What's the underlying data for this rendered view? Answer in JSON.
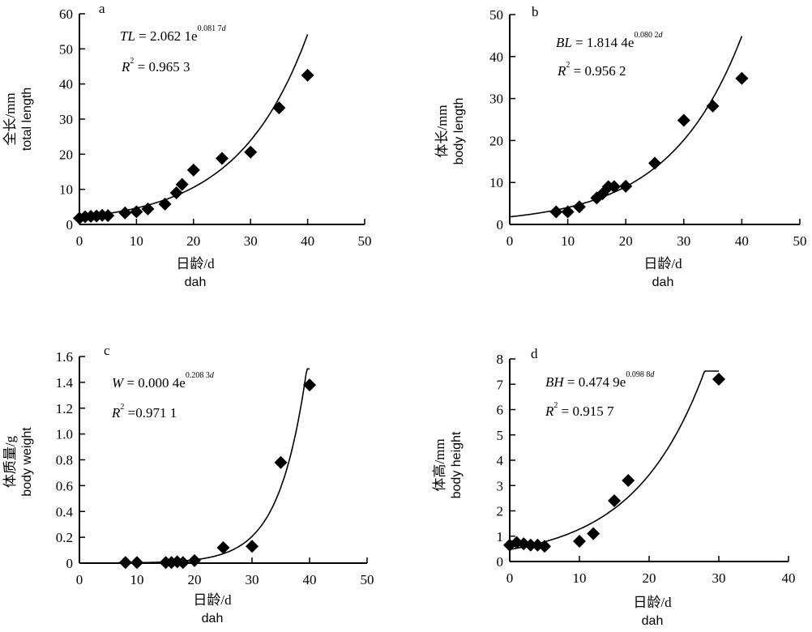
{
  "chart_data": [
    {
      "type": "scatter",
      "panel": "a",
      "ylabel_cn": "全长/mm",
      "ylabel_en": "total length",
      "xlabel_cn": "日龄/d",
      "xlabel_en": "dah",
      "xlim": [
        0,
        50
      ],
      "ylim": [
        0,
        60
      ],
      "xticks": [
        "0",
        "10",
        "20",
        "30",
        "40",
        "50"
      ],
      "yticks": [
        "0",
        "10",
        "20",
        "30",
        "40",
        "50",
        "60"
      ],
      "equation": {
        "var": "TL",
        "text": " = 2.062 1e",
        "exp": "0.081 7",
        "expvar": "d",
        "r2": " = 0.965 3"
      },
      "fit": {
        "a": 2.0621,
        "b": 0.0817,
        "xmax": 40
      },
      "x": [
        0,
        1,
        2,
        3,
        4,
        5,
        8,
        10,
        12,
        15,
        17,
        18,
        20,
        25,
        30,
        35,
        40
      ],
      "y": [
        1.8,
        2.2,
        2.3,
        2.4,
        2.6,
        2.5,
        3.3,
        3.6,
        4.4,
        5.8,
        9.0,
        11.4,
        15.5,
        18.8,
        20.6,
        33.2,
        42.5
      ]
    },
    {
      "type": "scatter",
      "panel": "b",
      "ylabel_cn": "体长/mm",
      "ylabel_en": "body length",
      "xlabel_cn": "日龄/d",
      "xlabel_en": "dah",
      "xlim": [
        0,
        50
      ],
      "ylim": [
        0,
        50
      ],
      "xticks": [
        "0",
        "10",
        "20",
        "30",
        "40",
        "50"
      ],
      "yticks": [
        "0",
        "10",
        "20",
        "30",
        "40",
        "50"
      ],
      "equation": {
        "var": "BL",
        "text": " = 1.814 4e",
        "exp": "0.080 2",
        "expvar": "d",
        "r2": " = 0.956 2"
      },
      "fit": {
        "a": 1.8144,
        "b": 0.0802,
        "xmax": 40
      },
      "x": [
        8,
        10,
        12,
        15,
        16,
        17,
        18,
        20,
        25,
        30,
        35,
        40
      ],
      "y": [
        3.0,
        3.0,
        4.2,
        6.3,
        7.3,
        9.0,
        9.0,
        9.1,
        14.6,
        24.8,
        28.2,
        34.8
      ]
    },
    {
      "type": "scatter",
      "panel": "c",
      "ylabel_cn": "体质量/g",
      "ylabel_en": "body weight",
      "xlabel_cn": "日龄/d",
      "xlabel_en": "dah",
      "xlim": [
        0,
        50
      ],
      "ylim": [
        0,
        1.6
      ],
      "xticks": [
        "0",
        "10",
        "20",
        "30",
        "40",
        "50"
      ],
      "yticks": [
        "0",
        "0.2",
        "0.4",
        "0.6",
        "0.8",
        "1.0",
        "1.2",
        "1.4",
        "1.6"
      ],
      "equation": {
        "var": "W",
        "text": " = 0.000 4e",
        "exp": "0.208 3",
        "expvar": "d",
        "r2": " =0.971 1"
      },
      "fit": {
        "a": 0.0004,
        "b": 0.2083,
        "xmax": 40
      },
      "x": [
        8,
        10,
        15,
        16,
        17,
        18,
        20,
        25,
        30,
        35,
        40
      ],
      "y": [
        0.005,
        0.005,
        0.005,
        0.005,
        0.01,
        0.005,
        0.02,
        0.12,
        0.13,
        0.78,
        1.38
      ]
    },
    {
      "type": "scatter",
      "panel": "d",
      "ylabel_cn": "体高/mm",
      "ylabel_en": "body height",
      "xlabel_cn": "日龄/d",
      "xlabel_en": "dah",
      "xlim": [
        0,
        40
      ],
      "ylim": [
        0,
        8
      ],
      "xticks": [
        "0",
        "10",
        "20",
        "30",
        "40"
      ],
      "yticks": [
        "0",
        "1",
        "2",
        "3",
        "4",
        "5",
        "6",
        "7",
        "8"
      ],
      "equation": {
        "var": "BH",
        "text": " = 0.474 9e",
        "exp": "0.098 8",
        "expvar": "d",
        "r2": " = 0.915 7"
      },
      "fit": {
        "a": 0.4749,
        "b": 0.0988,
        "xmax": 30
      },
      "x": [
        0,
        1,
        2,
        3,
        4,
        5,
        10,
        12,
        15,
        17,
        30
      ],
      "y": [
        0.65,
        0.75,
        0.7,
        0.65,
        0.65,
        0.6,
        0.8,
        1.1,
        2.4,
        3.2,
        7.2
      ]
    }
  ]
}
